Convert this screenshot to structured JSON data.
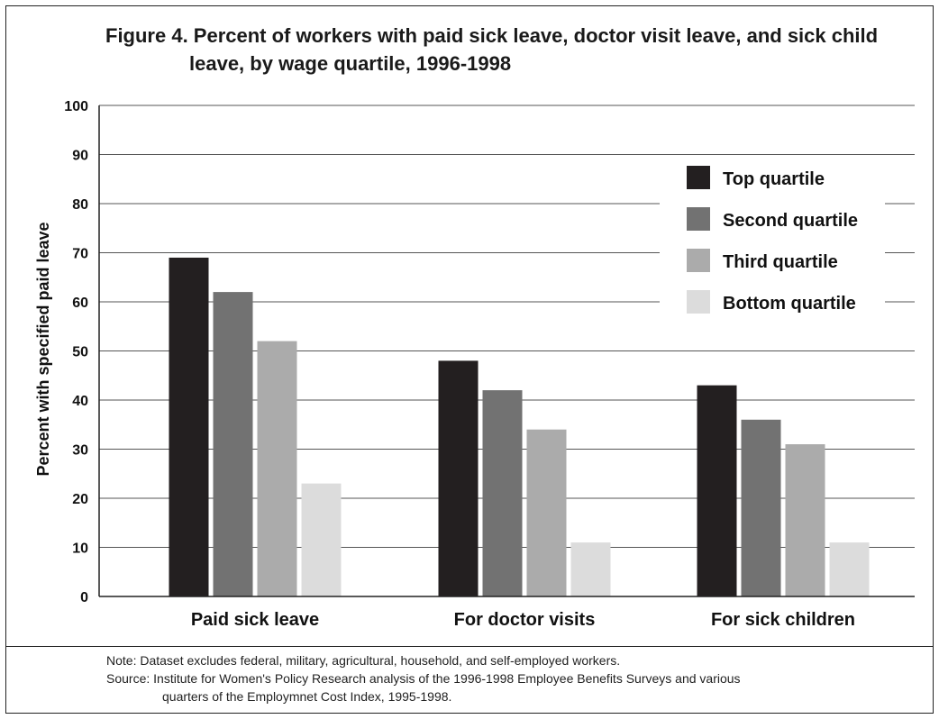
{
  "chart_data": {
    "type": "bar",
    "title": "Figure 4. Percent of workers with paid sick leave, doctor visit leave, and sick child leave, by wage quartile, 1996-1998",
    "title_line1": "Figure 4. Percent of workers with paid sick leave, doctor visit leave, and sick child",
    "title_line2": "leave, by wage quartile, 1996-1998",
    "ylabel": "Percent with specified paid leave",
    "xlabel": "",
    "ylim": [
      0,
      100
    ],
    "yticks": [
      0,
      10,
      20,
      30,
      40,
      50,
      60,
      70,
      80,
      90,
      100
    ],
    "grid": true,
    "legend_position": "right",
    "categories": [
      "Paid sick leave",
      "For doctor visits",
      "For sick children"
    ],
    "series": [
      {
        "name": "Top quartile",
        "color": "#231f20",
        "values": [
          69,
          48,
          43
        ]
      },
      {
        "name": "Second quartile",
        "color": "#727272",
        "values": [
          62,
          42,
          36
        ]
      },
      {
        "name": "Third quartile",
        "color": "#ababab",
        "values": [
          52,
          34,
          31
        ]
      },
      {
        "name": "Bottom quartile",
        "color": "#dcdcdc",
        "values": [
          23,
          11,
          11
        ]
      }
    ]
  },
  "notes": {
    "note": "Note: Dataset excludes federal, military, agricultural, household, and self-employed workers.",
    "source_line1": "Source: Institute for Women's Policy Research analysis of the 1996-1998 Employee Benefits Surveys and various",
    "source_line2": "quarters of the Employmnet Cost Index, 1995-1998."
  }
}
